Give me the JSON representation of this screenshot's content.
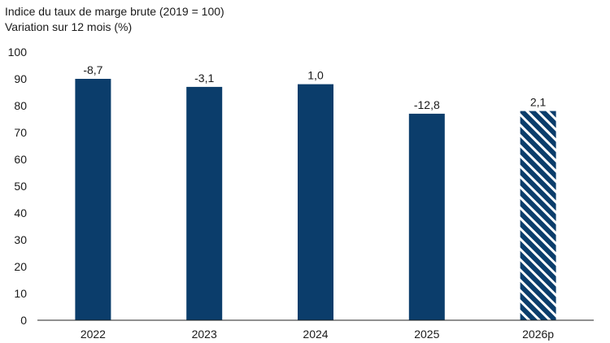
{
  "chart_data": {
    "type": "bar",
    "title": "Indice du taux de marge brute (2019 = 100)",
    "subtitle": "Variation sur 12 mois (%)",
    "categories": [
      "2022",
      "2023",
      "2024",
      "2025",
      "2026p"
    ],
    "values": [
      90,
      87,
      88,
      77,
      78
    ],
    "data_labels": [
      "-8,7",
      "-3,1",
      "1,0",
      "-12,8",
      "2,1"
    ],
    "projected": [
      false,
      false,
      false,
      false,
      true
    ],
    "ylim": [
      0,
      100
    ],
    "yticks": [
      "0",
      "10",
      "20",
      "30",
      "40",
      "50",
      "60",
      "70",
      "80",
      "90",
      "100"
    ],
    "grid": false,
    "colors": {
      "bar": "#0b3d6b",
      "hatch": "#ffffff"
    }
  }
}
